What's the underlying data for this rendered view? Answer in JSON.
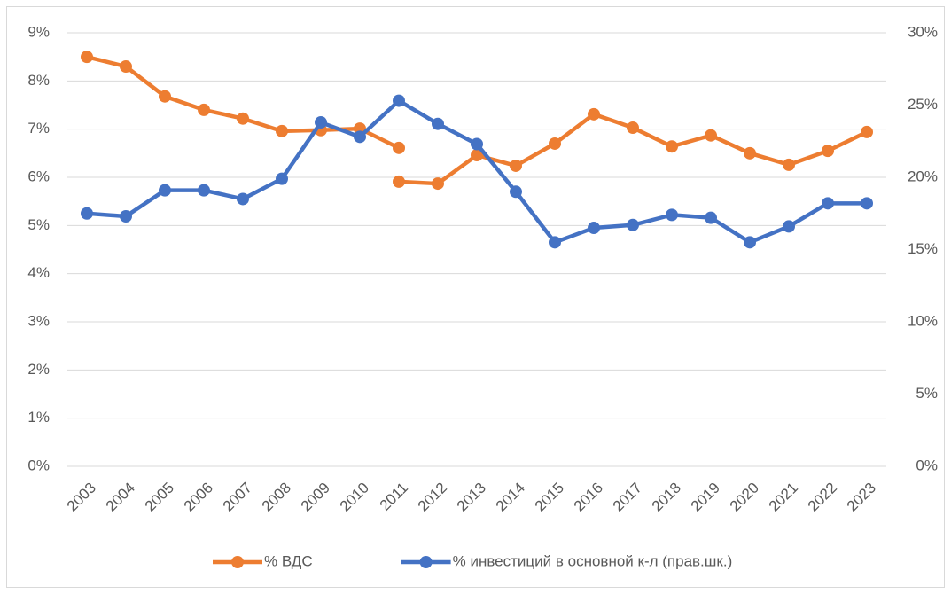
{
  "chart_data": {
    "type": "line",
    "categories": [
      "2003",
      "2004",
      "2005",
      "2006",
      "2007",
      "2008",
      "2009",
      "2010",
      "2011",
      "2012",
      "2013",
      "2014",
      "2015",
      "2016",
      "2017",
      "2018",
      "2019",
      "2020",
      "2021",
      "2022",
      "2023"
    ],
    "series": [
      {
        "name": "% ВДС",
        "color": "#ed7d31",
        "axis": "y",
        "values": [
          8.5,
          8.3,
          7.68,
          7.4,
          7.22,
          6.96,
          6.98,
          7.01,
          6.61,
          null,
          null,
          null,
          null,
          null,
          null,
          null,
          null,
          null,
          null,
          null,
          null
        ]
      },
      {
        "color": "#ed7d31",
        "axis": "y",
        "values": [
          null,
          null,
          null,
          null,
          null,
          null,
          null,
          null,
          5.91,
          5.87,
          6.46,
          6.24,
          6.7,
          7.31,
          7.03,
          6.64,
          6.87,
          6.5,
          6.26,
          6.55,
          6.94
        ]
      },
      {
        "name": "% инвестиций в основной к-л (прав.шк.)",
        "color": "#4472c4",
        "axis": "y2",
        "values": [
          17.5,
          17.3,
          19.1,
          19.1,
          18.5,
          19.9,
          23.8,
          22.8,
          25.3,
          23.7,
          22.3,
          19.0,
          15.5,
          16.5,
          16.7,
          17.4,
          17.2,
          15.5,
          16.6,
          18.2,
          18.2
        ]
      }
    ],
    "ylim": [
      0,
      9
    ],
    "yticks": [
      {
        "value": 0,
        "label": "0%"
      },
      {
        "value": 1,
        "label": "1%"
      },
      {
        "value": 2,
        "label": "2%"
      },
      {
        "value": 3,
        "label": "3%"
      },
      {
        "value": 4,
        "label": "4%"
      },
      {
        "value": 5,
        "label": "5%"
      },
      {
        "value": 6,
        "label": "6%"
      },
      {
        "value": 7,
        "label": "7%"
      },
      {
        "value": 8,
        "label": "8%"
      },
      {
        "value": 9,
        "label": "9%"
      }
    ],
    "y2lim": [
      0,
      30
    ],
    "y2ticks": [
      {
        "value": 0,
        "label": "0%"
      },
      {
        "value": 5,
        "label": "5%"
      },
      {
        "value": 10,
        "label": "10%"
      },
      {
        "value": 15,
        "label": "15%"
      },
      {
        "value": 20,
        "label": "20%"
      },
      {
        "value": 25,
        "label": "25%"
      },
      {
        "value": 30,
        "label": "30%"
      }
    ],
    "grid": true,
    "legend": "bottom"
  }
}
